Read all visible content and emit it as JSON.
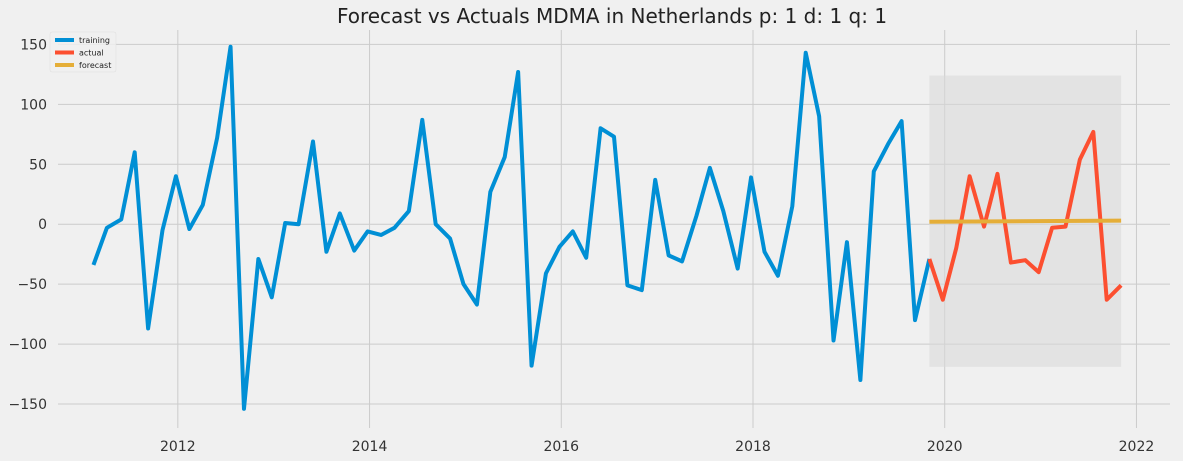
{
  "chart_data": {
    "type": "line",
    "title": "Forecast vs Actuals MDMA in Netherlands p: 1 d: 1 q: 1",
    "xlabel": "",
    "ylabel": "",
    "xlim": [
      2010.75,
      2022.35
    ],
    "ylim": [
      -170,
      162
    ],
    "x_ticks": [
      2012,
      2014,
      2016,
      2018,
      2020,
      2022
    ],
    "x_tick_labels": [
      "2012",
      "2014",
      "2016",
      "2018",
      "2020",
      "2022"
    ],
    "y_ticks": [
      -150,
      -100,
      -50,
      0,
      50,
      100,
      150
    ],
    "y_tick_labels": [
      "−150",
      "−100",
      "−50",
      "0",
      "50",
      "100",
      "150"
    ],
    "grid": true,
    "legend_position": "top-left",
    "colors": {
      "training": "#008fd5",
      "actual": "#fc4f30",
      "forecast": "#e5ae38",
      "band": "#d8d8d8"
    },
    "series": [
      {
        "name": "training",
        "x": [
          2011.12,
          2011.26,
          2011.41,
          2011.55,
          2011.69,
          2011.84,
          2011.98,
          2012.12,
          2012.26,
          2012.41,
          2012.55,
          2012.69,
          2012.84,
          2012.98,
          2013.12,
          2013.26,
          2013.41,
          2013.55,
          2013.69,
          2013.84,
          2013.98,
          2014.12,
          2014.26,
          2014.41,
          2014.55,
          2014.69,
          2014.84,
          2014.98,
          2015.12,
          2015.26,
          2015.41,
          2015.55,
          2015.69,
          2015.84,
          2015.98,
          2016.12,
          2016.26,
          2016.41,
          2016.55,
          2016.69,
          2016.84,
          2016.98,
          2017.12,
          2017.26,
          2017.41,
          2017.55,
          2017.69,
          2017.84,
          2017.98,
          2018.12,
          2018.26,
          2018.41,
          2018.55,
          2018.69,
          2018.84,
          2018.98,
          2019.12,
          2019.26,
          2019.41,
          2019.55,
          2019.69,
          2019.84
        ],
        "values": [
          -34,
          -3,
          4,
          60,
          -87,
          -5,
          40,
          -4,
          16,
          72,
          148,
          -154,
          -29,
          -61,
          1,
          0,
          69,
          -23,
          9,
          -22,
          -6,
          -9,
          -3,
          11,
          87,
          0,
          -12,
          -50,
          -67,
          27,
          56,
          127,
          -118,
          -41,
          -19,
          -6,
          -28,
          80,
          73,
          -51,
          -55,
          37,
          -26,
          -31,
          7,
          47,
          11,
          -37,
          39,
          -23,
          -43,
          15,
          143,
          90,
          -97,
          -15,
          -130,
          44,
          67,
          86,
          -80,
          -29
        ]
      },
      {
        "name": "actual",
        "x": [
          2019.84,
          2019.98,
          2020.12,
          2020.26,
          2020.41,
          2020.55,
          2020.69,
          2020.84,
          2020.98,
          2021.12,
          2021.26,
          2021.41,
          2021.55,
          2021.69,
          2021.84
        ],
        "values": [
          -29,
          -63,
          -20,
          40,
          -2,
          42,
          -32,
          -30,
          -40,
          -3,
          -2,
          54,
          77,
          -63,
          -51
        ]
      },
      {
        "name": "forecast",
        "x": [
          2019.84,
          2021.84
        ],
        "values": [
          2,
          3
        ]
      }
    ],
    "confidence_band": {
      "x": [
        2019.84,
        2021.84
      ],
      "lower": -119,
      "upper": 124
    }
  }
}
